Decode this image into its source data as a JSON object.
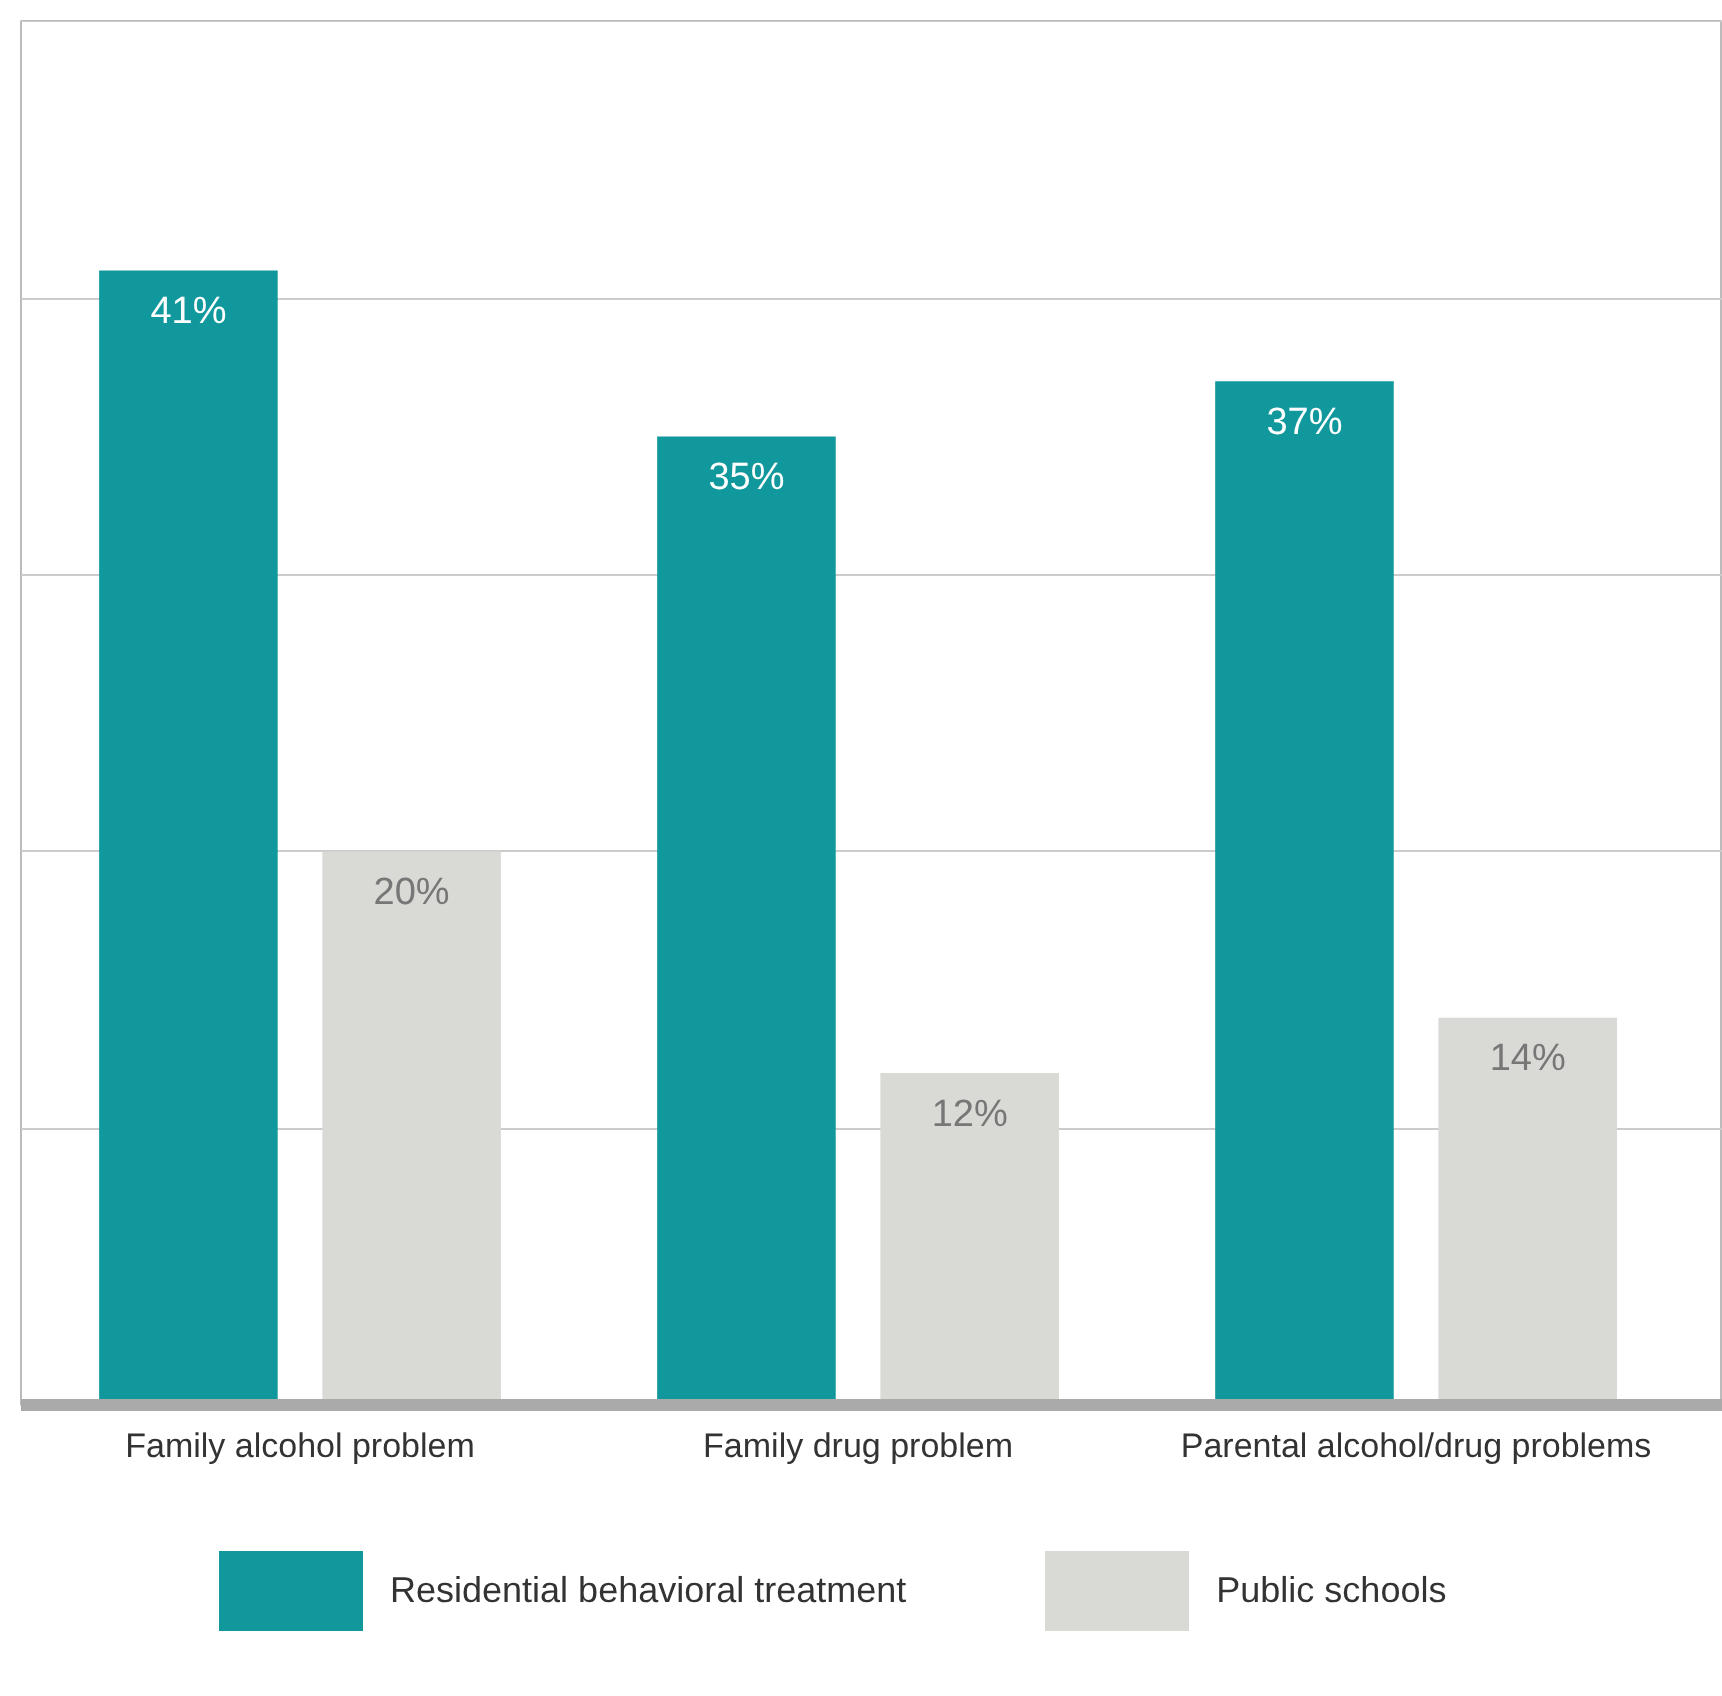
{
  "chart_data": {
    "type": "bar",
    "categories": [
      "Family alcohol problem",
      "Family drug problem",
      "Parental alcohol/drug problems"
    ],
    "series": [
      {
        "name": "Residential behavioral treatment",
        "color": "#10989c",
        "values": [
          41,
          35,
          37
        ],
        "value_labels": [
          "41%",
          "35%",
          "37%"
        ]
      },
      {
        "name": "Public schools",
        "color": "#d9d9d5",
        "values": [
          20,
          12,
          14
        ],
        "value_labels": [
          "20%",
          "12%",
          "14%"
        ]
      }
    ],
    "tick_labels": "x",
    "grid": "y",
    "legend": "bottom"
  }
}
